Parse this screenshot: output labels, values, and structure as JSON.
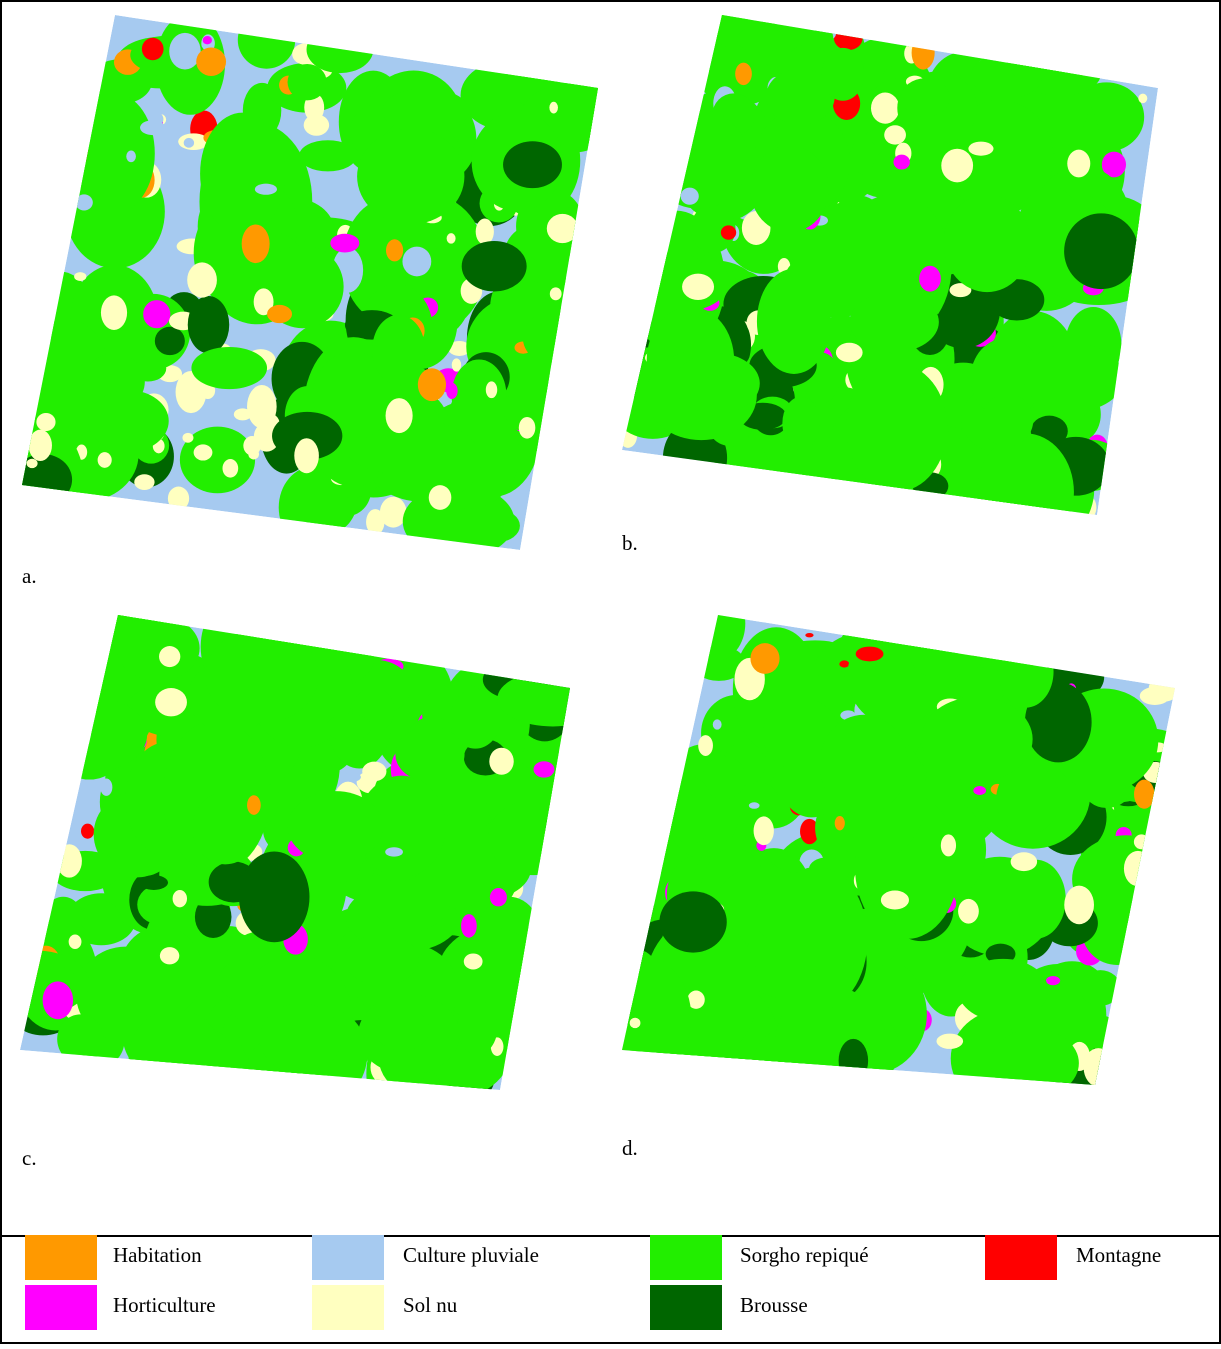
{
  "panels": [
    {
      "label": "a."
    },
    {
      "label": "b."
    },
    {
      "label": "c."
    },
    {
      "label": "d."
    }
  ],
  "legend": [
    {
      "label": "Habitation",
      "color": "#ff9900"
    },
    {
      "label": "Culture pluviale",
      "color": "#a6caf0"
    },
    {
      "label": "Sorgho repiqué",
      "color": "#22ee00"
    },
    {
      "label": "Montagne",
      "color": "#ff0000"
    },
    {
      "label": "Horticulture",
      "color": "#ff00ff"
    },
    {
      "label": "Sol nu",
      "color": "#ffffc0"
    },
    {
      "label": "Brousse",
      "color": "#006600"
    }
  ]
}
